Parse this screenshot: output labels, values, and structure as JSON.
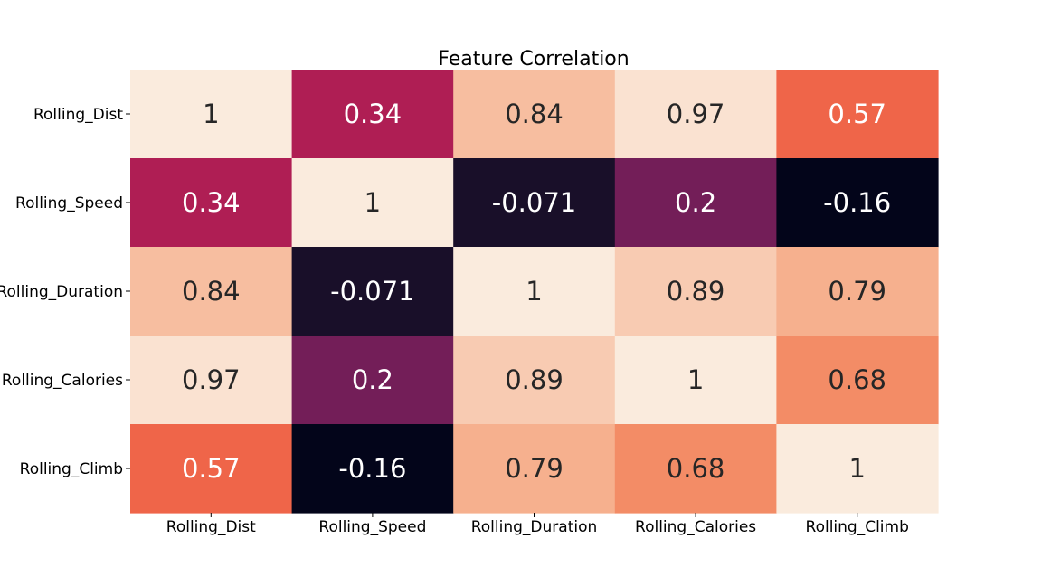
{
  "chart_data": {
    "type": "heatmap",
    "title": "Feature Correlation",
    "xlabel": "",
    "ylabel": "",
    "x_labels": [
      "Rolling_Dist",
      "Rolling_Speed",
      "Rolling_Duration",
      "Rolling_Calories",
      "Rolling_Climb"
    ],
    "y_labels": [
      "Rolling_Dist",
      "Rolling_Speed",
      "Rolling_Duration",
      "Rolling_Calories",
      "Rolling_Climb"
    ],
    "values": [
      [
        1,
        0.34,
        0.84,
        0.97,
        0.57
      ],
      [
        0.34,
        1,
        -0.071,
        0.2,
        -0.16
      ],
      [
        0.84,
        -0.071,
        1,
        0.89,
        0.79
      ],
      [
        0.97,
        0.2,
        0.89,
        1,
        0.68
      ],
      [
        0.57,
        -0.16,
        0.79,
        0.68,
        1
      ]
    ],
    "colorscale": "rocket",
    "vmin": -0.16,
    "vmax": 1,
    "annotations": true,
    "colorbar": false
  }
}
